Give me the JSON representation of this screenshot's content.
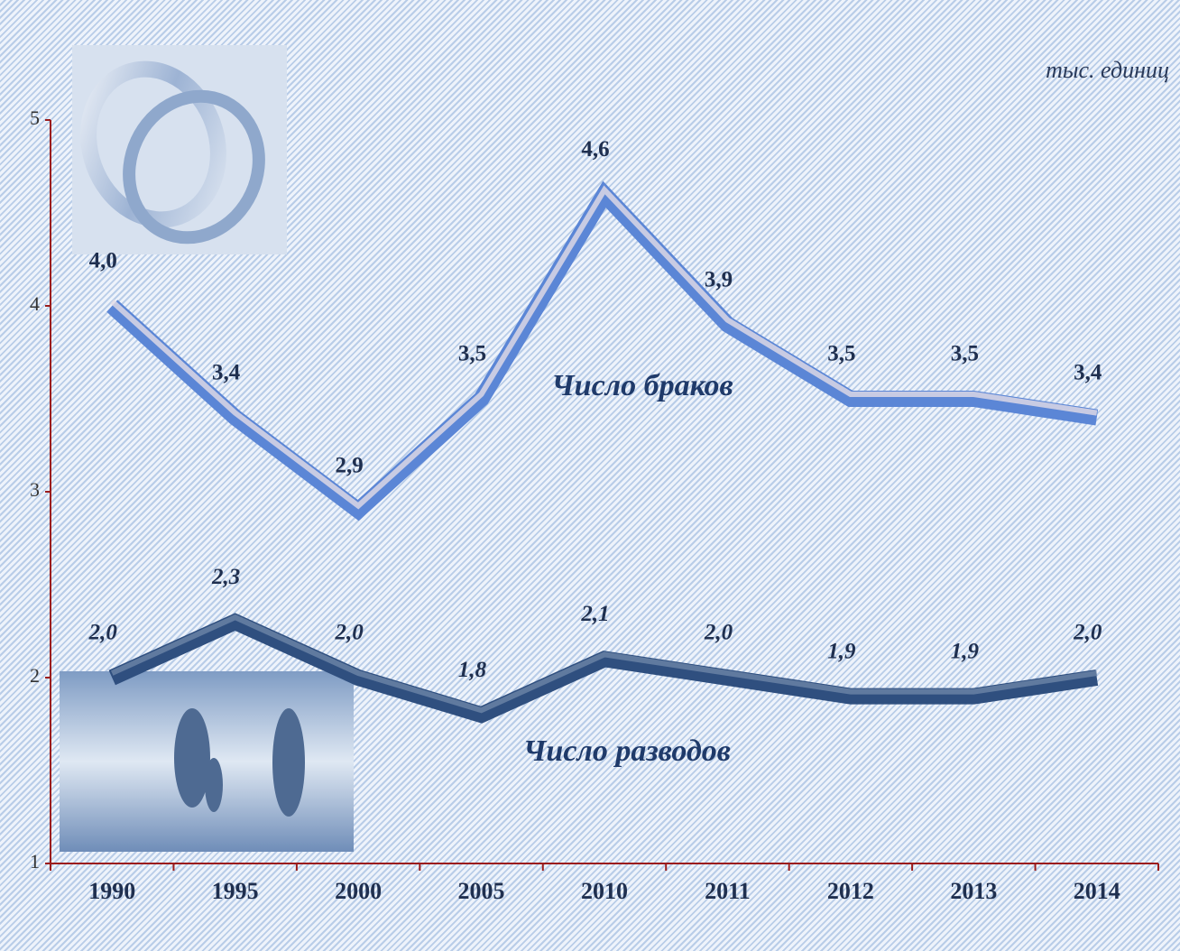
{
  "chart_data": {
    "type": "line",
    "unit_label": "тыс. единиц",
    "categories": [
      "1990",
      "1995",
      "2000",
      "2005",
      "2010",
      "2011",
      "2012",
      "2013",
      "2014"
    ],
    "series": [
      {
        "name": "Число браков",
        "color": "#5b86d6",
        "values": [
          4.0,
          3.4,
          2.9,
          3.5,
          4.6,
          3.9,
          3.5,
          3.5,
          3.4
        ],
        "value_labels": [
          "4,0",
          "3,4",
          "2,9",
          "3,5",
          "4,6",
          "3,9",
          "3,5",
          "3,5",
          "3,4"
        ]
      },
      {
        "name": "Число разводов",
        "color": "#2f4f7f",
        "values": [
          2.0,
          2.3,
          2.0,
          1.8,
          2.1,
          2.0,
          1.9,
          1.9,
          2.0
        ],
        "value_labels": [
          "2,0",
          "2,3",
          "2,0",
          "1,8",
          "2,1",
          "2,0",
          "1,9",
          "1,9",
          "2,0"
        ]
      }
    ],
    "ylim": [
      1,
      5
    ],
    "yticks": [
      1,
      2,
      3,
      4,
      5
    ],
    "axis_color": "#9b1c1c"
  }
}
